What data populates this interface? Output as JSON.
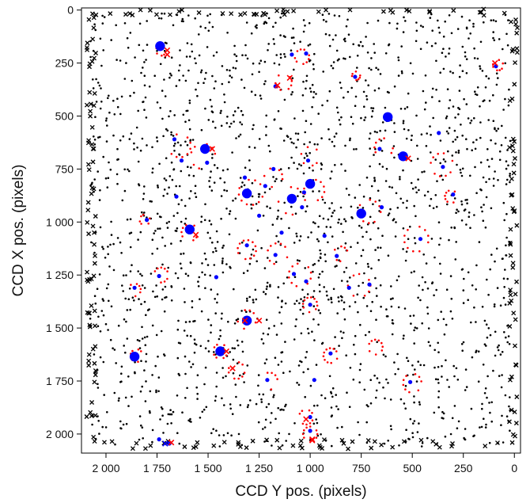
{
  "chart_data": {
    "type": "scatter",
    "title": "",
    "xlabel": "CCD Y pos. (pixels)",
    "ylabel": "CCD X pos. (pixels)",
    "xlim": [
      2120,
      -30
    ],
    "ylim": [
      -10,
      2090
    ],
    "x_reversed": true,
    "y_reversed": true,
    "x_ticks": [
      {
        "value": 2000,
        "label": "2 000"
      },
      {
        "value": 1750,
        "label": "1 750"
      },
      {
        "value": 1500,
        "label": "1 500"
      },
      {
        "value": 1250,
        "label": "1 250"
      },
      {
        "value": 1000,
        "label": "1 000"
      },
      {
        "value": 750,
        "label": "750"
      },
      {
        "value": 500,
        "label": "500"
      },
      {
        "value": 250,
        "label": "250"
      },
      {
        "value": 0,
        "label": "0"
      }
    ],
    "y_ticks": [
      {
        "value": 0,
        "label": "0"
      },
      {
        "value": 250,
        "label": "250"
      },
      {
        "value": 500,
        "label": "500"
      },
      {
        "value": 750,
        "label": "750"
      },
      {
        "value": 1000,
        "label": "1 000"
      },
      {
        "value": 1250,
        "label": "1 250"
      },
      {
        "value": 1500,
        "label": "1 500"
      },
      {
        "value": 1750,
        "label": "1 750"
      },
      {
        "value": 2000,
        "label": "2 000"
      }
    ],
    "grid": false,
    "colors": {
      "background": "#000000",
      "matched": "#0000ff",
      "unmatched": "#ff0000",
      "axis": "#000000"
    },
    "field_point_count": 1900,
    "series": [
      {
        "marker": "large-circle",
        "color": "#0000ff",
        "points": [
          [
            1735,
            170
          ],
          [
            620,
            505
          ],
          [
            545,
            690
          ],
          [
            1515,
            655
          ],
          [
            1590,
            1035
          ],
          [
            1310,
            865
          ],
          [
            1090,
            890
          ],
          [
            1000,
            820
          ],
          [
            750,
            960
          ],
          [
            1440,
            1610
          ],
          [
            1860,
            1635
          ],
          [
            1310,
            1465
          ]
        ]
      },
      {
        "marker": "small-circle",
        "color": "#0000ff",
        "points": [
          [
            1090,
            210
          ],
          [
            1020,
            205
          ],
          [
            1170,
            360
          ],
          [
            780,
            315
          ],
          [
            90,
            265
          ],
          [
            1665,
            610
          ],
          [
            1630,
            710
          ],
          [
            1505,
            720
          ],
          [
            1655,
            880
          ],
          [
            1010,
            710
          ],
          [
            660,
            655
          ],
          [
            370,
            580
          ],
          [
            350,
            740
          ],
          [
            300,
            870
          ],
          [
            1180,
            750
          ],
          [
            1320,
            790
          ],
          [
            1220,
            830
          ],
          [
            1030,
            860
          ],
          [
            1040,
            930
          ],
          [
            650,
            930
          ],
          [
            460,
            1080
          ],
          [
            1170,
            1155
          ],
          [
            1310,
            1110
          ],
          [
            1080,
            1245
          ],
          [
            1020,
            1280
          ],
          [
            930,
            1065
          ],
          [
            870,
            1160
          ],
          [
            1000,
            1390
          ],
          [
            1460,
            1260
          ],
          [
            1740,
            1255
          ],
          [
            1860,
            1310
          ],
          [
            810,
            1310
          ],
          [
            710,
            1295
          ],
          [
            1800,
            990
          ],
          [
            900,
            1620
          ],
          [
            980,
            1745
          ],
          [
            510,
            1755
          ],
          [
            1210,
            1745
          ],
          [
            1000,
            1920
          ],
          [
            1000,
            1985
          ],
          [
            1740,
            2025
          ],
          [
            1690,
            2045
          ],
          [
            1250,
            970
          ],
          [
            1140,
            1050
          ]
        ]
      },
      {
        "marker": "x",
        "color": "#ff0000",
        "points": [
          [
            1700,
            190
          ],
          [
            1700,
            210
          ],
          [
            1160,
            355
          ],
          [
            1100,
            320
          ],
          [
            520,
            700
          ],
          [
            1480,
            655
          ],
          [
            1560,
            1060
          ],
          [
            1320,
            1465
          ],
          [
            1250,
            1465
          ],
          [
            1380,
            1690
          ],
          [
            990,
            2025
          ],
          [
            1680,
            2040
          ],
          [
            1020,
            1930
          ],
          [
            1410,
            1610
          ],
          [
            990,
            2030
          ],
          [
            95,
            250
          ]
        ]
      },
      {
        "marker": "x",
        "color": "#0000ff",
        "points": [
          [
            1710,
            2045
          ]
        ]
      }
    ],
    "ring_clusters": [
      {
        "center": [
          1730,
          190
        ],
        "radius": 25
      },
      {
        "center": [
          1040,
          220
        ],
        "radius": 35
      },
      {
        "center": [
          1130,
          340
        ],
        "radius": 40
      },
      {
        "center": [
          775,
          310
        ],
        "radius": 20
      },
      {
        "center": [
          80,
          260
        ],
        "radius": 25
      },
      {
        "center": [
          1640,
          640
        ],
        "radius": 55
      },
      {
        "center": [
          1525,
          690
        ],
        "radius": 60
      },
      {
        "center": [
          1000,
          690
        ],
        "radius": 45
      },
      {
        "center": [
          640,
          650
        ],
        "radius": 45
      },
      {
        "center": [
          355,
          730
        ],
        "radius": 55
      },
      {
        "center": [
          310,
          880
        ],
        "radius": 30
      },
      {
        "center": [
          1180,
          790
        ],
        "radius": 45
      },
      {
        "center": [
          1290,
          860
        ],
        "radius": 60
      },
      {
        "center": [
          1090,
          900
        ],
        "radius": 65
      },
      {
        "center": [
          980,
          850
        ],
        "radius": 50
      },
      {
        "center": [
          710,
          950
        ],
        "radius": 55
      },
      {
        "center": [
          480,
          1080
        ],
        "radius": 60
      },
      {
        "center": [
          1590,
          1050
        ],
        "radius": 40
      },
      {
        "center": [
          1810,
          990
        ],
        "radius": 25
      },
      {
        "center": [
          1160,
          1150
        ],
        "radius": 50
      },
      {
        "center": [
          1310,
          1130
        ],
        "radius": 45
      },
      {
        "center": [
          1050,
          1250
        ],
        "radius": 55
      },
      {
        "center": [
          850,
          1150
        ],
        "radius": 35
      },
      {
        "center": [
          1000,
          1390
        ],
        "radius": 35
      },
      {
        "center": [
          1730,
          1250
        ],
        "radius": 35
      },
      {
        "center": [
          1860,
          1320
        ],
        "radius": 30
      },
      {
        "center": [
          760,
          1300
        ],
        "radius": 55
      },
      {
        "center": [
          680,
          1590
        ],
        "radius": 35
      },
      {
        "center": [
          1310,
          1460
        ],
        "radius": 45
      },
      {
        "center": [
          1440,
          1610
        ],
        "radius": 35
      },
      {
        "center": [
          1850,
          1630
        ],
        "radius": 30
      },
      {
        "center": [
          900,
          1630
        ],
        "radius": 35
      },
      {
        "center": [
          1360,
          1700
        ],
        "radius": 40
      },
      {
        "center": [
          1200,
          1750
        ],
        "radius": 40
      },
      {
        "center": [
          500,
          1760
        ],
        "radius": 45
      },
      {
        "center": [
          1020,
          1920
        ],
        "radius": 35
      },
      {
        "center": [
          1000,
          2000
        ],
        "radius": 35
      }
    ]
  }
}
